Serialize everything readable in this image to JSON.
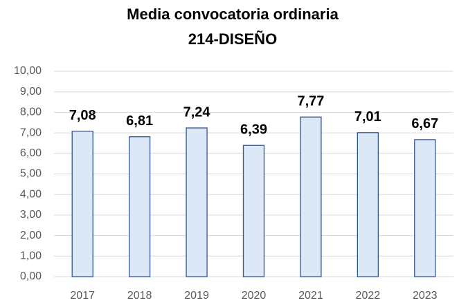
{
  "chart_data": {
    "type": "bar",
    "title": "Media convocatoria ordinaria",
    "subtitle": "214-DISEÑO",
    "categories": [
      "2017",
      "2018",
      "2019",
      "2020",
      "2021",
      "2022",
      "2023"
    ],
    "values": [
      7.08,
      6.81,
      7.24,
      6.39,
      7.77,
      7.01,
      6.67
    ],
    "value_labels": [
      "7,08",
      "6,81",
      "7,24",
      "6,39",
      "7,77",
      "7,01",
      "6,67"
    ],
    "color": "#dde8f6",
    "edge_color": "#2f5597",
    "ylim": [
      0,
      10
    ],
    "yticks": [
      {
        "value": 0,
        "label": "0,00"
      },
      {
        "value": 1,
        "label": "1,00"
      },
      {
        "value": 2,
        "label": "2,00"
      },
      {
        "value": 3,
        "label": "3,00"
      },
      {
        "value": 4,
        "label": "4,00"
      },
      {
        "value": 5,
        "label": "5,00"
      },
      {
        "value": 6,
        "label": "6,00"
      },
      {
        "value": 7,
        "label": "7,00"
      },
      {
        "value": 8,
        "label": "8,00"
      },
      {
        "value": 9,
        "label": "9,00"
      },
      {
        "value": 10,
        "label": "10,00"
      }
    ],
    "grid": true
  }
}
